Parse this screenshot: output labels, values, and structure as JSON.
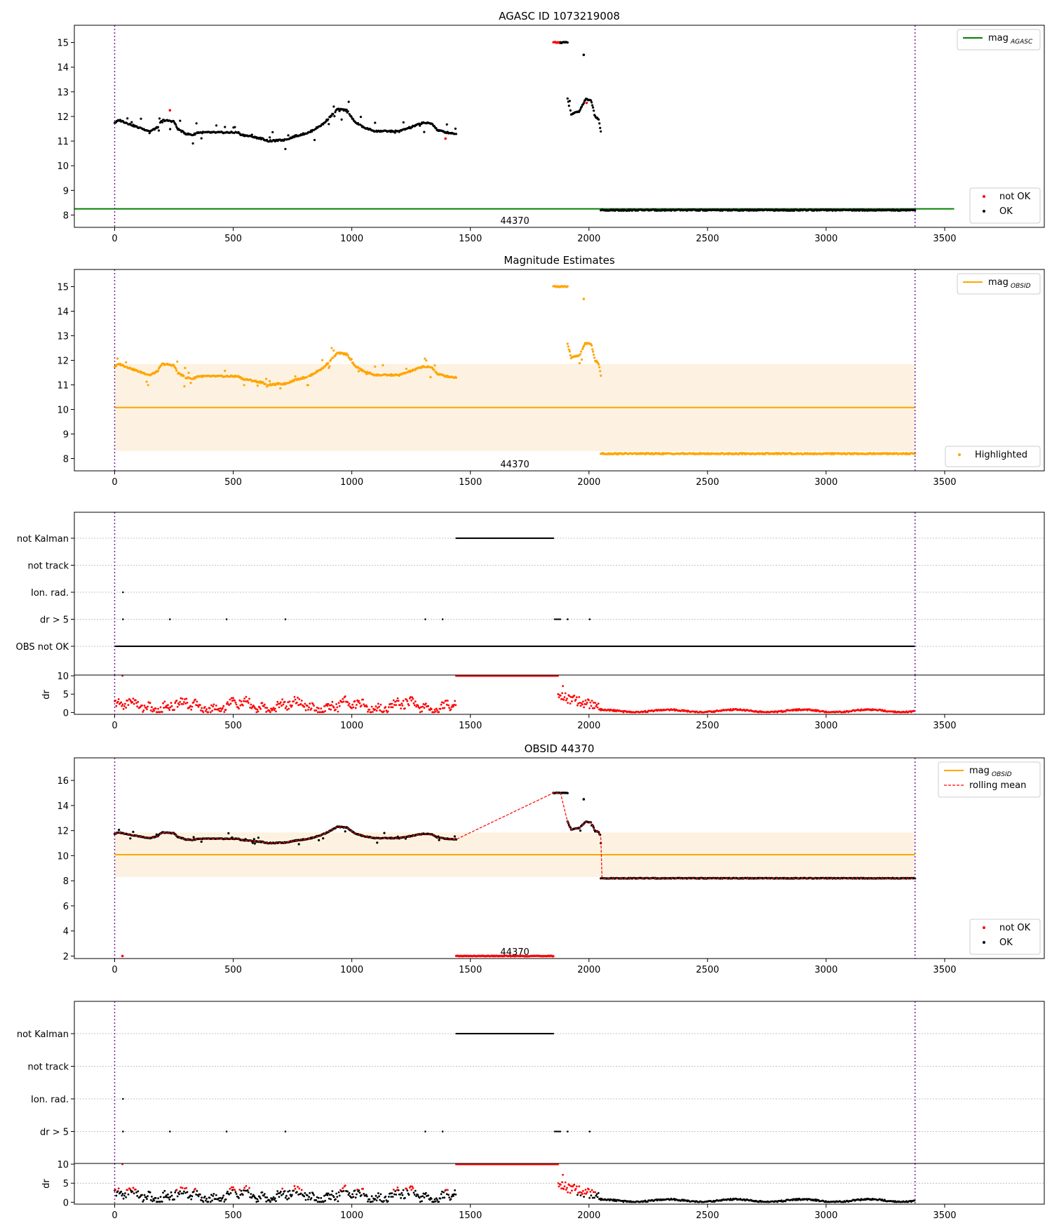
{
  "chart_data": [
    {
      "id": "agasc",
      "type": "scatter",
      "title": "AGASC ID 1073219008",
      "xlim": [
        -170,
        3920
      ],
      "ylim": [
        7.5,
        15.7
      ],
      "xticks": [
        0,
        500,
        1000,
        1500,
        2000,
        2500,
        3000,
        3500
      ],
      "yticks": [
        8,
        9,
        10,
        11,
        12,
        13,
        14,
        15
      ],
      "obs_bounds": [
        0,
        3375
      ],
      "obsid_label": "44370",
      "mag_line": {
        "name": "mag_AGASC",
        "label_main": "mag",
        "label_sub": "AGASC",
        "value": 8.25,
        "x_range": [
          -170,
          3540
        ],
        "color": "#008000"
      },
      "legend_top": "top-right",
      "legend_bottom": "bottom-right",
      "point_legend": [
        {
          "name": "not OK",
          "color": "#ff0000"
        },
        {
          "name": "OK",
          "color": "#000000"
        }
      ],
      "segments": [
        {
          "x": [
            0,
            1440
          ],
          "profile": "mag_a",
          "color": "#000000"
        },
        {
          "x": [
            1850,
            1880
          ],
          "y": 15.0,
          "color": "#ff0000"
        },
        {
          "x": [
            1880,
            1910
          ],
          "y": 15.0,
          "color": "#000000"
        },
        {
          "x": [
            1910,
            2050
          ],
          "profile": "mag_b",
          "color": "#000000"
        },
        {
          "x": [
            2050,
            3375
          ],
          "y": 8.2,
          "color": "#000000"
        }
      ],
      "outliers": [
        {
          "x": 233,
          "y": 12.25,
          "color": "#ff0000"
        },
        {
          "x": 1978,
          "y": 14.5,
          "color": "#000000"
        },
        {
          "x": 1395,
          "y": 11.1,
          "color": "#ff0000"
        },
        {
          "x": 1990,
          "y": 12.55,
          "color": "#ff0000"
        }
      ]
    },
    {
      "id": "estimates",
      "type": "scatter",
      "title": "Magnitude Estimates",
      "xlim": [
        -170,
        3920
      ],
      "ylim": [
        7.5,
        15.7
      ],
      "xticks": [
        0,
        500,
        1000,
        1500,
        2000,
        2500,
        3000,
        3500
      ],
      "yticks": [
        8,
        9,
        10,
        11,
        12,
        13,
        14,
        15
      ],
      "obs_bounds": [
        0,
        3375
      ],
      "obsid_label": "44370",
      "mag_line": {
        "name": "mag_OBSID",
        "label_main": "mag",
        "label_sub": "OBSID",
        "value": 10.08,
        "x_range": [
          0,
          3375
        ],
        "color": "#ffa500"
      },
      "band": {
        "y": [
          8.3,
          11.85
        ],
        "x": [
          0,
          3375
        ],
        "color": "#fdf2e1"
      },
      "legend_top": "top-right",
      "legend_bottom": "bottom-right",
      "point_legend": [
        {
          "name": "Highlighted",
          "color": "#ffa500"
        }
      ],
      "segments": [
        {
          "x": [
            0,
            1440
          ],
          "profile": "mag_a",
          "color": "#ffa500"
        },
        {
          "x": [
            1850,
            1910
          ],
          "y": 15.0,
          "color": "#ffa500"
        },
        {
          "x": [
            1910,
            2050
          ],
          "profile": "mag_b",
          "color": "#ffa500"
        },
        {
          "x": [
            2050,
            3375
          ],
          "y": 8.2,
          "color": "#ffa500"
        }
      ],
      "outliers": [
        {
          "x": 1978,
          "y": 14.5,
          "color": "#ffa500"
        }
      ]
    },
    {
      "id": "flags1",
      "type": "scatter",
      "xlim": [
        -170,
        3920
      ],
      "xticks": [
        0,
        500,
        1000,
        1500,
        2000,
        2500,
        3000,
        3500
      ],
      "obs_bounds": [
        0,
        3375
      ],
      "categories": [
        "not Kalman",
        "not track",
        "Ion. rad.",
        "dr > 5",
        "OBS not OK"
      ],
      "flag_segments": [
        {
          "cat": "not Kalman",
          "x": [
            1440,
            1850
          ]
        },
        {
          "cat": "OBS not OK",
          "x": [
            0,
            3375
          ]
        },
        {
          "cat": "dr > 5",
          "x": [
            1855,
            1880
          ]
        }
      ],
      "flag_points": [
        {
          "cat": "Ion. rad.",
          "x": 35
        },
        {
          "cat": "dr > 5",
          "x": 35
        },
        {
          "cat": "dr > 5",
          "x": 233
        },
        {
          "cat": "dr > 5",
          "x": 472
        },
        {
          "cat": "dr > 5",
          "x": 720
        },
        {
          "cat": "dr > 5",
          "x": 1310
        },
        {
          "cat": "dr > 5",
          "x": 1383
        },
        {
          "cat": "dr > 5",
          "x": 1910
        },
        {
          "cat": "dr > 5",
          "x": 2003
        }
      ],
      "dr": {
        "ylabel": "dr",
        "ylim": [
          -0.5,
          10.2
        ],
        "yticks": [
          0,
          5,
          10
        ],
        "saturated": {
          "x": [
            1440,
            1870
          ],
          "value": 10,
          "color": "#ff0000"
        },
        "extra_points": [
          {
            "x": 33,
            "y": 10
          },
          {
            "x": 1890,
            "y": 7.2
          }
        ],
        "mode": "all_red"
      }
    },
    {
      "id": "obsid",
      "type": "scatter",
      "title": "OBSID 44370",
      "xlim": [
        -170,
        3920
      ],
      "ylim": [
        1.8,
        17.8
      ],
      "xticks": [
        0,
        500,
        1000,
        1500,
        2000,
        2500,
        3000,
        3500
      ],
      "yticks": [
        2,
        4,
        6,
        8,
        10,
        12,
        14,
        16
      ],
      "obs_bounds": [
        0,
        3375
      ],
      "obsid_label": "44370",
      "mag_line": {
        "name": "mag_OBSID",
        "label_main": "mag",
        "label_sub": "OBSID",
        "value": 10.08,
        "x_range": [
          0,
          3375
        ],
        "color": "#ffa500"
      },
      "band": {
        "y": [
          8.3,
          11.85
        ],
        "x": [
          0,
          3375
        ],
        "color": "#fdf2e1"
      },
      "rolling_mean": {
        "name": "rolling mean",
        "color": "#ff0000"
      },
      "legend_top": "top-right",
      "legend_bottom": "bottom-right",
      "point_legend": [
        {
          "name": "not OK",
          "color": "#ff0000"
        },
        {
          "name": "OK",
          "color": "#000000"
        }
      ],
      "segments": [
        {
          "x": [
            0,
            1440
          ],
          "profile": "mag_a",
          "color": "#000000"
        },
        {
          "x": [
            1440,
            1850
          ],
          "y": 2.0,
          "color": "#ff0000"
        },
        {
          "x": [
            1850,
            1910
          ],
          "y": 15.0,
          "color": "#000000"
        },
        {
          "x": [
            1910,
            2050
          ],
          "profile": "mag_b",
          "color": "#000000"
        },
        {
          "x": [
            2050,
            3375
          ],
          "y": 8.2,
          "color": "#000000"
        }
      ],
      "outliers": [
        {
          "x": 33,
          "y": 2.0,
          "color": "#ff0000"
        },
        {
          "x": 1978,
          "y": 14.5,
          "color": "#000000"
        }
      ]
    },
    {
      "id": "flags2",
      "type": "scatter",
      "xlim": [
        -170,
        3920
      ],
      "xticks": [
        0,
        500,
        1000,
        1500,
        2000,
        2500,
        3000,
        3500
      ],
      "obs_bounds": [
        0,
        3375
      ],
      "categories": [
        "not Kalman",
        "not track",
        "Ion. rad.",
        "dr > 5"
      ],
      "flag_segments": [
        {
          "cat": "not Kalman",
          "x": [
            1440,
            1850
          ]
        },
        {
          "cat": "dr > 5",
          "x": [
            1855,
            1880
          ]
        }
      ],
      "flag_points": [
        {
          "cat": "Ion. rad.",
          "x": 35
        },
        {
          "cat": "dr > 5",
          "x": 35
        },
        {
          "cat": "dr > 5",
          "x": 233
        },
        {
          "cat": "dr > 5",
          "x": 472
        },
        {
          "cat": "dr > 5",
          "x": 720
        },
        {
          "cat": "dr > 5",
          "x": 1310
        },
        {
          "cat": "dr > 5",
          "x": 1383
        },
        {
          "cat": "dr > 5",
          "x": 1910
        },
        {
          "cat": "dr > 5",
          "x": 2003
        }
      ],
      "dr": {
        "ylabel": "dr",
        "ylim": [
          -0.5,
          10.2
        ],
        "yticks": [
          0,
          5,
          10
        ],
        "saturated": {
          "x": [
            1440,
            1870
          ],
          "value": 10,
          "color": "#ff0000"
        },
        "extra_points": [
          {
            "x": 33,
            "y": 10
          },
          {
            "x": 1890,
            "y": 7.2
          }
        ],
        "mode": "mixed"
      }
    }
  ]
}
